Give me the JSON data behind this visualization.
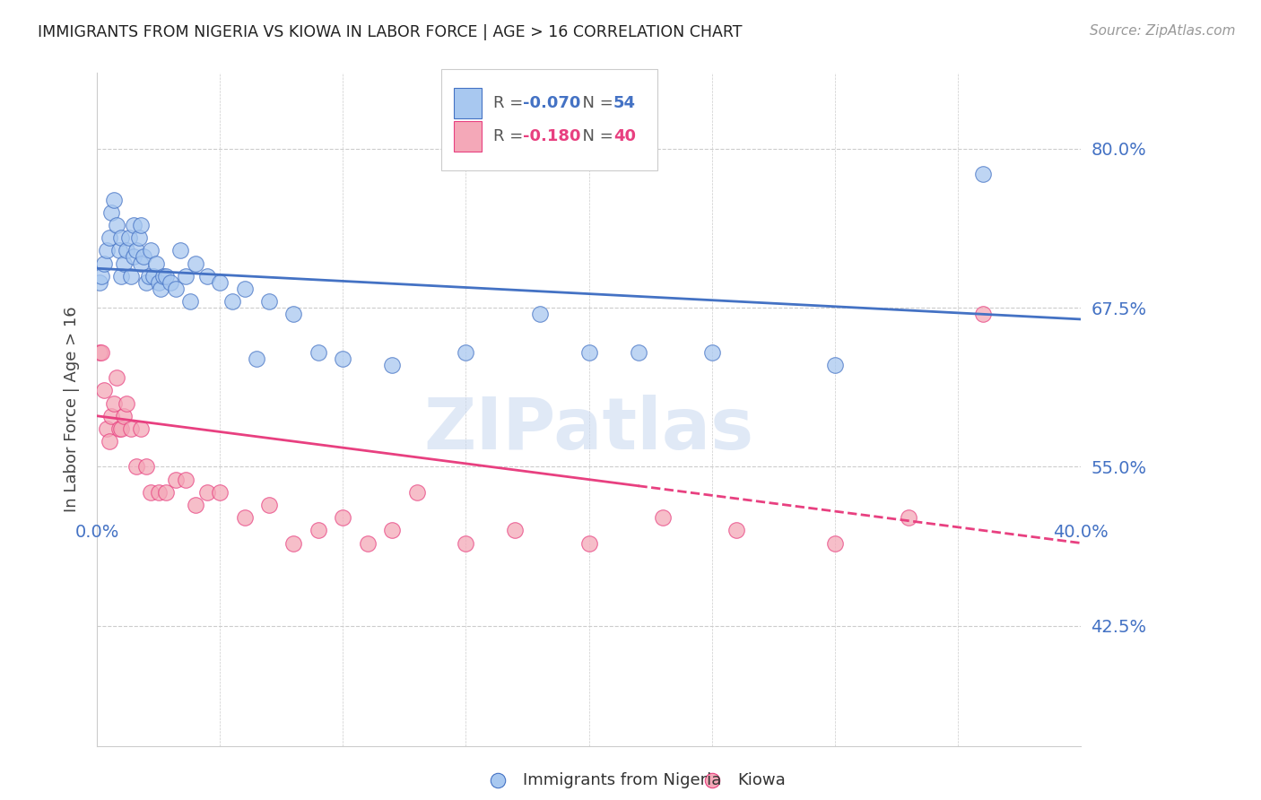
{
  "title": "IMMIGRANTS FROM NIGERIA VS KIOWA IN LABOR FORCE | AGE > 16 CORRELATION CHART",
  "source": "Source: ZipAtlas.com",
  "ylabel": "In Labor Force | Age > 16",
  "ytick_labels": [
    "80.0%",
    "67.5%",
    "55.0%",
    "42.5%"
  ],
  "ytick_values": [
    0.8,
    0.675,
    0.55,
    0.425
  ],
  "xlim": [
    0.0,
    0.4
  ],
  "ylim": [
    0.33,
    0.86
  ],
  "legend_r_nigeria": "-0.070",
  "legend_n_nigeria": "54",
  "legend_r_kiowa": "-0.180",
  "legend_n_kiowa": "40",
  "color_nigeria_fill": "#A8C8F0",
  "color_kiowa_fill": "#F4A8B8",
  "color_nigeria_line": "#4472C4",
  "color_kiowa_line": "#E84080",
  "color_axis_labels": "#4472C4",
  "color_grid": "#CCCCCC",
  "nigeria_x": [
    0.001,
    0.002,
    0.003,
    0.004,
    0.005,
    0.006,
    0.007,
    0.008,
    0.009,
    0.01,
    0.01,
    0.011,
    0.012,
    0.013,
    0.014,
    0.015,
    0.015,
    0.016,
    0.017,
    0.018,
    0.018,
    0.019,
    0.02,
    0.021,
    0.022,
    0.023,
    0.024,
    0.025,
    0.026,
    0.027,
    0.028,
    0.03,
    0.032,
    0.034,
    0.036,
    0.038,
    0.04,
    0.045,
    0.05,
    0.055,
    0.06,
    0.065,
    0.07,
    0.08,
    0.09,
    0.1,
    0.12,
    0.15,
    0.18,
    0.2,
    0.22,
    0.25,
    0.3,
    0.36
  ],
  "nigeria_y": [
    0.695,
    0.7,
    0.71,
    0.72,
    0.73,
    0.75,
    0.76,
    0.74,
    0.72,
    0.73,
    0.7,
    0.71,
    0.72,
    0.73,
    0.7,
    0.715,
    0.74,
    0.72,
    0.73,
    0.74,
    0.71,
    0.715,
    0.695,
    0.7,
    0.72,
    0.7,
    0.71,
    0.695,
    0.69,
    0.7,
    0.7,
    0.695,
    0.69,
    0.72,
    0.7,
    0.68,
    0.71,
    0.7,
    0.695,
    0.68,
    0.69,
    0.635,
    0.68,
    0.67,
    0.64,
    0.635,
    0.63,
    0.64,
    0.67,
    0.64,
    0.64,
    0.64,
    0.63,
    0.78
  ],
  "kiowa_x": [
    0.001,
    0.002,
    0.003,
    0.004,
    0.005,
    0.006,
    0.007,
    0.008,
    0.009,
    0.01,
    0.011,
    0.012,
    0.014,
    0.016,
    0.018,
    0.02,
    0.022,
    0.025,
    0.028,
    0.032,
    0.036,
    0.04,
    0.045,
    0.05,
    0.06,
    0.07,
    0.08,
    0.09,
    0.1,
    0.11,
    0.12,
    0.13,
    0.15,
    0.17,
    0.2,
    0.23,
    0.26,
    0.3,
    0.33,
    0.36
  ],
  "kiowa_y": [
    0.64,
    0.64,
    0.61,
    0.58,
    0.57,
    0.59,
    0.6,
    0.62,
    0.58,
    0.58,
    0.59,
    0.6,
    0.58,
    0.55,
    0.58,
    0.55,
    0.53,
    0.53,
    0.53,
    0.54,
    0.54,
    0.52,
    0.53,
    0.53,
    0.51,
    0.52,
    0.49,
    0.5,
    0.51,
    0.49,
    0.5,
    0.53,
    0.49,
    0.5,
    0.49,
    0.51,
    0.5,
    0.49,
    0.51,
    0.67
  ],
  "background_color": "#FFFFFF",
  "watermark": "ZIPatlas",
  "watermark_color": "#C8D8F0"
}
